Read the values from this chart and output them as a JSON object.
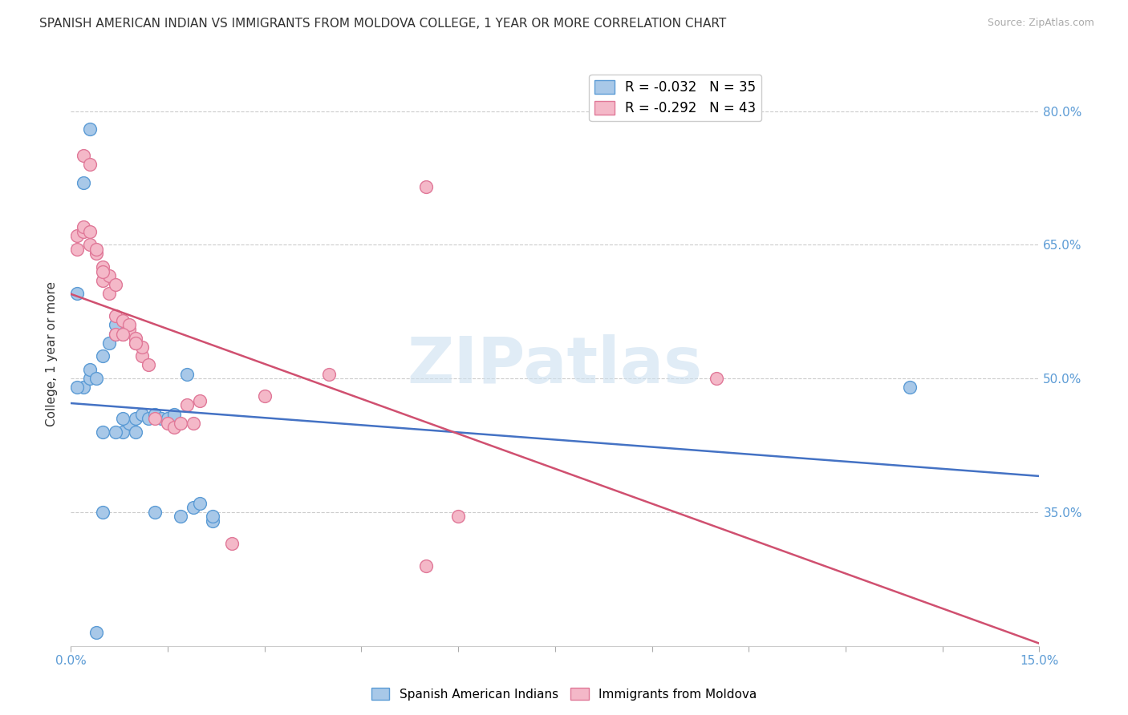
{
  "title": "SPANISH AMERICAN INDIAN VS IMMIGRANTS FROM MOLDOVA COLLEGE, 1 YEAR OR MORE CORRELATION CHART",
  "source": "Source: ZipAtlas.com",
  "ylabel": "College, 1 year or more",
  "xlim": [
    0.0,
    0.15
  ],
  "ylim": [
    0.2,
    0.855
  ],
  "xticks": [
    0.0,
    0.015,
    0.03,
    0.045,
    0.06,
    0.075,
    0.09,
    0.105,
    0.12,
    0.135,
    0.15
  ],
  "xticklabels": [
    "0.0%",
    "",
    "",
    "",
    "",
    "",
    "",
    "",
    "",
    "",
    "15.0%"
  ],
  "yticks": [
    0.35,
    0.5,
    0.65,
    0.8
  ],
  "yticklabels": [
    "35.0%",
    "50.0%",
    "65.0%",
    "80.0%"
  ],
  "blue_color": "#a8c8e8",
  "pink_color": "#f4b8c8",
  "blue_edge_color": "#5b9bd5",
  "pink_edge_color": "#e07898",
  "blue_line_color": "#4472c4",
  "pink_line_color": "#d05070",
  "legend_blue_label": "R = -0.032   N = 35",
  "legend_pink_label": "R = -0.292   N = 43",
  "blue_scatter_x": [
    0.001,
    0.002,
    0.002,
    0.003,
    0.003,
    0.004,
    0.005,
    0.005,
    0.006,
    0.007,
    0.007,
    0.008,
    0.009,
    0.01,
    0.011,
    0.012,
    0.013,
    0.014,
    0.015,
    0.016,
    0.018,
    0.019,
    0.02,
    0.022,
    0.001,
    0.003,
    0.005,
    0.007,
    0.008,
    0.01,
    0.013,
    0.017,
    0.022,
    0.13,
    0.004
  ],
  "blue_scatter_y": [
    0.595,
    0.72,
    0.49,
    0.5,
    0.51,
    0.5,
    0.525,
    0.44,
    0.54,
    0.55,
    0.56,
    0.44,
    0.45,
    0.455,
    0.46,
    0.455,
    0.46,
    0.455,
    0.455,
    0.46,
    0.505,
    0.355,
    0.36,
    0.34,
    0.49,
    0.78,
    0.35,
    0.44,
    0.455,
    0.44,
    0.35,
    0.345,
    0.345,
    0.49,
    0.215
  ],
  "pink_scatter_x": [
    0.001,
    0.001,
    0.002,
    0.002,
    0.003,
    0.003,
    0.004,
    0.004,
    0.005,
    0.005,
    0.006,
    0.006,
    0.007,
    0.007,
    0.008,
    0.008,
    0.009,
    0.009,
    0.01,
    0.01,
    0.011,
    0.011,
    0.012,
    0.013,
    0.015,
    0.016,
    0.017,
    0.018,
    0.019,
    0.02,
    0.025,
    0.03,
    0.04,
    0.06,
    0.1,
    0.002,
    0.003,
    0.005,
    0.007,
    0.008,
    0.01,
    0.055,
    0.055
  ],
  "pink_scatter_y": [
    0.645,
    0.66,
    0.665,
    0.67,
    0.65,
    0.665,
    0.64,
    0.645,
    0.625,
    0.61,
    0.615,
    0.595,
    0.605,
    0.57,
    0.565,
    0.55,
    0.555,
    0.56,
    0.54,
    0.545,
    0.525,
    0.535,
    0.515,
    0.455,
    0.45,
    0.445,
    0.45,
    0.47,
    0.45,
    0.475,
    0.315,
    0.48,
    0.505,
    0.345,
    0.5,
    0.75,
    0.74,
    0.62,
    0.55,
    0.55,
    0.54,
    0.715,
    0.29
  ],
  "watermark": "ZIPatlas",
  "background_color": "#ffffff",
  "grid_color": "#cccccc",
  "tick_color": "#5b9bd5",
  "title_fontsize": 11,
  "axis_label_fontsize": 11,
  "tick_fontsize": 11,
  "source_fontsize": 9,
  "marker_size": 130
}
